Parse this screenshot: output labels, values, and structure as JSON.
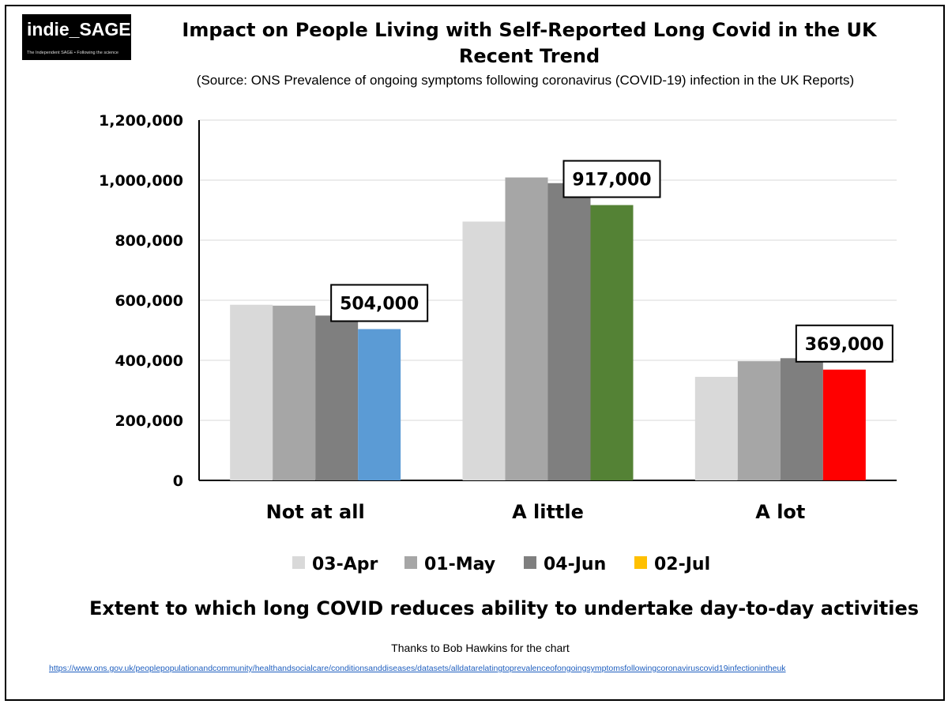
{
  "logo": {
    "name": "indie_SAGE",
    "tagline": "The Independent SAGE • Following the science"
  },
  "header": {
    "title_line1": "Impact on People Living with Self-Reported Long Covid in the UK",
    "title_line2": "Recent Trend",
    "source": "(Source: ONS Prevalence of ongoing symptoms following coronavirus (COVID-19) infection in the UK Reports)"
  },
  "chart_data": {
    "type": "bar",
    "title": "Impact on People Living with Self-Reported Long Covid in the UK - Recent Trend",
    "xlabel": "Extent to which long COVID reduces ability to undertake day-to-day activities",
    "ylabel": "",
    "ylim": [
      0,
      1200000
    ],
    "yticks": [
      0,
      200000,
      400000,
      600000,
      800000,
      1000000,
      1200000
    ],
    "ytick_labels": [
      "0",
      "200,000",
      "400,000",
      "600,000",
      "800,000",
      "1,000,000",
      "1,200,000"
    ],
    "grid": true,
    "legend_position": "bottom",
    "categories": [
      "Not at all",
      "A little",
      "A lot"
    ],
    "series": [
      {
        "name": "03-Apr",
        "legend_color": "#d9d9d9",
        "values": [
          585000,
          862000,
          345000
        ]
      },
      {
        "name": "01-May",
        "legend_color": "#a6a6a6",
        "values": [
          582000,
          1009000,
          397000
        ]
      },
      {
        "name": "04-Jun",
        "legend_color": "#7f7f7f",
        "values": [
          549000,
          990000,
          407000
        ]
      },
      {
        "name": "02-Jul",
        "legend_color": "#ffc000",
        "values": [
          504000,
          917000,
          369000
        ]
      }
    ],
    "highlight_colors": [
      "#5b9bd5",
      "#548235",
      "#ff0000"
    ],
    "annotations": [
      {
        "category": "Not at all",
        "text": "504,000"
      },
      {
        "category": "A little",
        "text": "917,000"
      },
      {
        "category": "A lot",
        "text": "369,000"
      }
    ]
  },
  "footer": {
    "thanks": "Thanks to Bob Hawkins for the chart",
    "url": "https://www.ons.gov.uk/peoplepopulationandcommunity/healthandsocialcare/conditionsanddiseases/datasets/alldatarelatingtoprevalenceofongoingsymptomsfollowingcoronaviruscovid19infectionintheuk"
  }
}
